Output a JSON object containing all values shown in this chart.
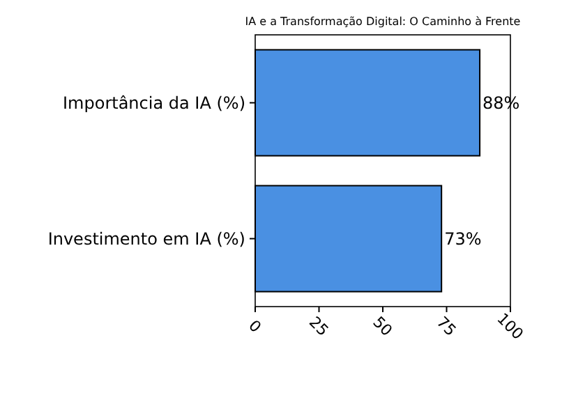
{
  "chart_data": {
    "type": "bar",
    "orientation": "horizontal",
    "title": "IA e a Transformação Digital: O Caminho à Frente",
    "categories": [
      "Importância da IA (%)",
      "Investimento em IA (%)"
    ],
    "values": [
      88,
      73
    ],
    "color": "#4a90e2",
    "value_labels": [
      "88%",
      "73%"
    ],
    "xlim": [
      0,
      100
    ],
    "xticks": [
      0,
      25,
      50,
      75,
      100
    ],
    "grid": false
  }
}
